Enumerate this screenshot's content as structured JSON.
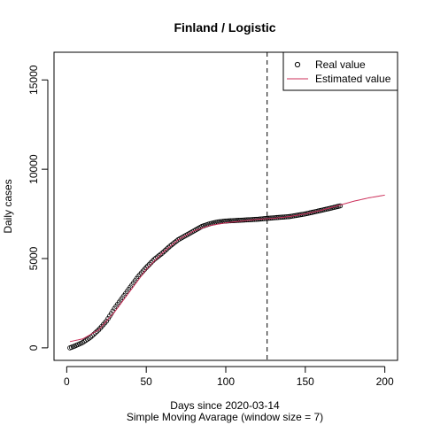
{
  "chart_data": {
    "type": "line",
    "title": "Finland / Logistic",
    "xlabel": "Days since 2020-03-14",
    "xlabel2": "Simple Moving Avarage (window size = 7)",
    "ylabel": "Daily cases",
    "xlim": [
      -8,
      208
    ],
    "ylim": [
      -700,
      16550
    ],
    "x_ticks": [
      0,
      50,
      100,
      150,
      200
    ],
    "y_ticks": [
      0,
      5000,
      10000,
      15000
    ],
    "vline_x": 126,
    "vline_style": "dashed",
    "legend_position": "top-right",
    "series": [
      {
        "name": "Real value",
        "style": "points",
        "marker": "open-circle",
        "color": "#000000",
        "x_start": 2,
        "x_end": 172,
        "points": [
          [
            2,
            0
          ],
          [
            5,
            100
          ],
          [
            10,
            300
          ],
          [
            15,
            600
          ],
          [
            20,
            1000
          ],
          [
            25,
            1500
          ],
          [
            30,
            2200
          ],
          [
            35,
            2800
          ],
          [
            40,
            3400
          ],
          [
            45,
            4000
          ],
          [
            50,
            4500
          ],
          [
            55,
            4950
          ],
          [
            60,
            5300
          ],
          [
            65,
            5700
          ],
          [
            70,
            6050
          ],
          [
            75,
            6300
          ],
          [
            80,
            6550
          ],
          [
            85,
            6800
          ],
          [
            90,
            6950
          ],
          [
            95,
            7050
          ],
          [
            100,
            7100
          ],
          [
            110,
            7150
          ],
          [
            120,
            7200
          ],
          [
            126,
            7250
          ],
          [
            130,
            7280
          ],
          [
            140,
            7350
          ],
          [
            150,
            7500
          ],
          [
            160,
            7700
          ],
          [
            165,
            7800
          ],
          [
            172,
            7950
          ]
        ]
      },
      {
        "name": "Estimated value",
        "style": "line",
        "color": "#cc2f5a",
        "points": [
          [
            2,
            350
          ],
          [
            10,
            500
          ],
          [
            20,
            1000
          ],
          [
            30,
            2000
          ],
          [
            40,
            3200
          ],
          [
            50,
            4400
          ],
          [
            60,
            5300
          ],
          [
            70,
            6050
          ],
          [
            80,
            6550
          ],
          [
            90,
            6850
          ],
          [
            100,
            7000
          ],
          [
            110,
            7100
          ],
          [
            120,
            7200
          ],
          [
            130,
            7250
          ],
          [
            140,
            7350
          ],
          [
            150,
            7500
          ],
          [
            160,
            7700
          ],
          [
            170,
            7950
          ],
          [
            180,
            8200
          ],
          [
            190,
            8400
          ],
          [
            200,
            8550
          ]
        ]
      }
    ]
  }
}
